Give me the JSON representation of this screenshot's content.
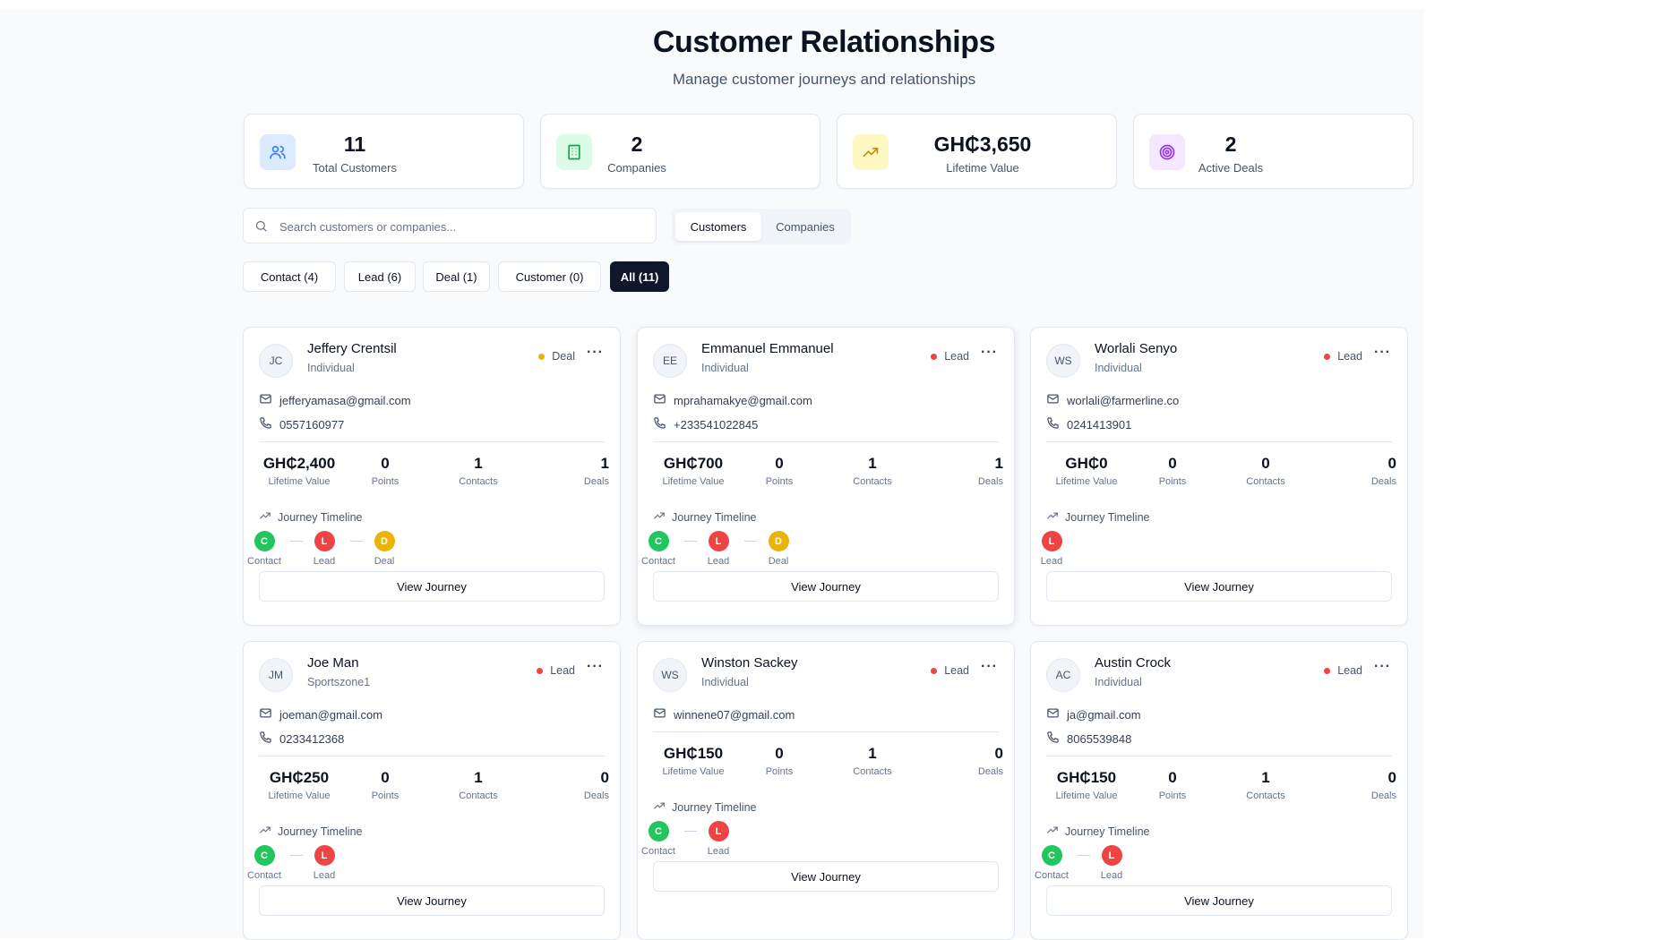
{
  "header": {
    "title": "Customer Relationships",
    "subtitle": "Manage customer journeys and relationships"
  },
  "stats": [
    {
      "value": "11",
      "label": "Total Customers",
      "icon": "users-icon",
      "color": "#3b82f6",
      "bg": "#dbeafe"
    },
    {
      "value": "2",
      "label": "Companies",
      "icon": "building-icon",
      "color": "#16a34a",
      "bg": "#dcfce7"
    },
    {
      "value": "GH₵3,650",
      "label": "Lifetime Value",
      "icon": "trending-up-icon",
      "color": "#ca8a04",
      "bg": "#fef9c3"
    },
    {
      "value": "2",
      "label": "Active Deals",
      "icon": "target-icon",
      "color": "#9333ea",
      "bg": "#f3e8ff"
    }
  ],
  "search": {
    "placeholder": "Search customers or companies..."
  },
  "tabs": {
    "customers": "Customers",
    "companies": "Companies"
  },
  "filters": [
    "Contact (4)",
    "Lead (6)",
    "Deal (1)",
    "Customer (0)",
    "All (11)"
  ],
  "labels": {
    "lifetime_value": "Lifetime Value",
    "points": "Points",
    "contacts": "Contacts",
    "deals": "Deals",
    "journey_timeline": "Journey Timeline",
    "view_journey": "View Journey",
    "more": "···"
  },
  "colors": {
    "contact": "#22c55e",
    "lead": "#ef4444",
    "deal": "#eab308",
    "primary": "#0f172a"
  },
  "cards": [
    {
      "initials": "JC",
      "name": "Jeffery Crentsil",
      "type": "Individual",
      "stage": "Deal",
      "stage_color": "#eab308",
      "email": "jefferyamasa@gmail.com",
      "phone": "0557160977",
      "ltv": "GH₵2,400",
      "points": "0",
      "contacts": "1",
      "deals": "1",
      "journey": [
        {
          "letter": "C",
          "label": "Contact",
          "color": "#22c55e"
        },
        {
          "letter": "L",
          "label": "Lead",
          "color": "#ef4444"
        },
        {
          "letter": "D",
          "label": "Deal",
          "color": "#eab308"
        }
      ]
    },
    {
      "initials": "EE",
      "name": "Emmanuel Emmanuel",
      "type": "Individual",
      "stage": "Lead",
      "stage_color": "#ef4444",
      "email": "mprahamakye@gmail.com",
      "phone": "+233541022845",
      "ltv": "GH₵700",
      "points": "0",
      "contacts": "1",
      "deals": "1",
      "journey": [
        {
          "letter": "C",
          "label": "Contact",
          "color": "#22c55e"
        },
        {
          "letter": "L",
          "label": "Lead",
          "color": "#ef4444"
        },
        {
          "letter": "D",
          "label": "Deal",
          "color": "#eab308"
        }
      ]
    },
    {
      "initials": "WS",
      "name": "Worlali Senyo",
      "type": "Individual",
      "stage": "Lead",
      "stage_color": "#ef4444",
      "email": "worlali@farmerline.co",
      "phone": "0241413901",
      "ltv": "GH₵0",
      "points": "0",
      "contacts": "0",
      "deals": "0",
      "journey": [
        {
          "letter": "L",
          "label": "Lead",
          "color": "#ef4444"
        }
      ]
    },
    {
      "initials": "JM",
      "name": "Joe Man",
      "type": "Sportszone1",
      "stage": "Lead",
      "stage_color": "#ef4444",
      "email": "joeman@gmail.com",
      "phone": "0233412368",
      "ltv": "GH₵250",
      "points": "0",
      "contacts": "1",
      "deals": "0",
      "journey": [
        {
          "letter": "C",
          "label": "Contact",
          "color": "#22c55e"
        },
        {
          "letter": "L",
          "label": "Lead",
          "color": "#ef4444"
        }
      ]
    },
    {
      "initials": "WS",
      "name": "Winston Sackey",
      "type": "Individual",
      "stage": "Lead",
      "stage_color": "#ef4444",
      "email": "winnene07@gmail.com",
      "phone": "",
      "ltv": "GH₵150",
      "points": "0",
      "contacts": "1",
      "deals": "0",
      "journey": [
        {
          "letter": "C",
          "label": "Contact",
          "color": "#22c55e"
        },
        {
          "letter": "L",
          "label": "Lead",
          "color": "#ef4444"
        }
      ]
    },
    {
      "initials": "AC",
      "name": "Austin Crock",
      "type": "Individual",
      "stage": "Lead",
      "stage_color": "#ef4444",
      "email": "ja@gmail.com",
      "phone": "8065539848",
      "ltv": "GH₵150",
      "points": "0",
      "contacts": "1",
      "deals": "0",
      "journey": [
        {
          "letter": "C",
          "label": "Contact",
          "color": "#22c55e"
        },
        {
          "letter": "L",
          "label": "Lead",
          "color": "#ef4444"
        }
      ]
    }
  ]
}
